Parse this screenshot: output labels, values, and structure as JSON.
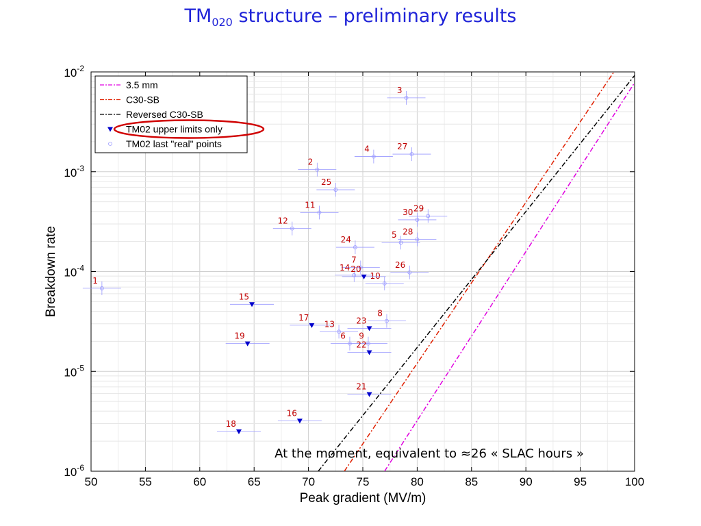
{
  "title": {
    "main": "TM",
    "sub": "020",
    "rest": " structure – preliminary results"
  },
  "chart_data": {
    "type": "scatter",
    "xlabel": "Peak gradient (MV/m)",
    "ylabel": "Breakdown rate",
    "xlim": [
      50,
      100
    ],
    "ylim_log10": [
      -6,
      -2
    ],
    "yscale": "log",
    "grid": true,
    "x_ticks": [
      "50",
      "55",
      "60",
      "65",
      "70",
      "75",
      "80",
      "85",
      "90",
      "95",
      "100"
    ],
    "y_tick_bases": [
      "10",
      "10",
      "10",
      "10",
      "10"
    ],
    "y_tick_exponents": [
      "-6",
      "-5",
      "-4",
      "-3",
      "-2"
    ],
    "legend_position": "top-left",
    "legend": [
      {
        "label": "3.5 mm",
        "style": "dash-dot",
        "color": "#e000e0"
      },
      {
        "label": "C30-SB",
        "style": "dash-dot",
        "color": "#e02000"
      },
      {
        "label": "Reversed C30-SB",
        "style": "dash-dot",
        "color": "#000000"
      },
      {
        "label": "TM02 upper limits only",
        "marker": "down-triangle",
        "color": "#0000cc"
      },
      {
        "label": "TM02 last \"real\" points",
        "marker": "circle",
        "color": "#9999ff"
      }
    ],
    "lines": [
      {
        "name": "3.5 mm",
        "color": "#e000e0",
        "points": [
          [
            77.0,
            1e-06
          ],
          [
            100.0,
            0.0078
          ]
        ]
      },
      {
        "name": "C30-SB",
        "color": "#e02000",
        "points": [
          [
            73.3,
            1e-06
          ],
          [
            98.1,
            0.01
          ]
        ]
      },
      {
        "name": "Reversed C30-SB",
        "color": "#000000",
        "points": [
          [
            70.9,
            1e-06
          ],
          [
            100.0,
            0.0092
          ]
        ]
      }
    ],
    "upper_limit_points": [
      {
        "label": "15",
        "x": 64.8,
        "y": 4.7e-05
      },
      {
        "label": "17",
        "x": 70.3,
        "y": 2.9e-05
      },
      {
        "label": "19",
        "x": 64.4,
        "y": 1.9e-05
      },
      {
        "label": "16",
        "x": 69.2,
        "y": 3.2e-06
      },
      {
        "label": "18",
        "x": 63.6,
        "y": 2.5e-06
      },
      {
        "label": "20",
        "x": 75.1,
        "y": 8.9e-05
      },
      {
        "label": "23",
        "x": 75.6,
        "y": 2.7e-05
      },
      {
        "label": "22",
        "x": 75.6,
        "y": 1.55e-05
      },
      {
        "label": "21",
        "x": 75.6,
        "y": 5.9e-06
      }
    ],
    "real_points": [
      {
        "label": "1",
        "x": 51.0,
        "y": 6.8e-05
      },
      {
        "label": "3",
        "x": 79.0,
        "y": 0.0055
      },
      {
        "label": "4",
        "x": 76.0,
        "y": 0.00142
      },
      {
        "label": "27",
        "x": 79.5,
        "y": 0.0015
      },
      {
        "label": "2",
        "x": 70.8,
        "y": 0.00105
      },
      {
        "label": "25",
        "x": 72.5,
        "y": 0.00066
      },
      {
        "label": "11",
        "x": 71.0,
        "y": 0.00039
      },
      {
        "label": "12",
        "x": 68.5,
        "y": 0.00027
      },
      {
        "label": "30",
        "x": 80.0,
        "y": 0.00033
      },
      {
        "label": "29",
        "x": 81.0,
        "y": 0.00036
      },
      {
        "label": "24",
        "x": 74.3,
        "y": 0.000175
      },
      {
        "label": "28",
        "x": 80.0,
        "y": 0.00021
      },
      {
        "label": "5",
        "x": 78.5,
        "y": 0.000195
      },
      {
        "label": "7",
        "x": 74.8,
        "y": 0.00011
      },
      {
        "label": "14",
        "x": 74.2,
        "y": 9.2e-05
      },
      {
        "label": "26",
        "x": 79.3,
        "y": 9.8e-05
      },
      {
        "label": "10",
        "x": 77.0,
        "y": 7.6e-05
      },
      {
        "label": "8",
        "x": 77.2,
        "y": 3.2e-05
      },
      {
        "label": "13",
        "x": 72.8,
        "y": 2.5e-05
      },
      {
        "label": "9",
        "x": 75.5,
        "y": 1.9e-05
      },
      {
        "label": "6",
        "x": 73.8,
        "y": 1.9e-05
      }
    ],
    "highlight": {
      "target": "TM02 upper limits only",
      "shape": "ellipse",
      "color": "#d00000"
    },
    "annotation": "At the moment, equivalent to ≈26 « SLAC hours »"
  }
}
